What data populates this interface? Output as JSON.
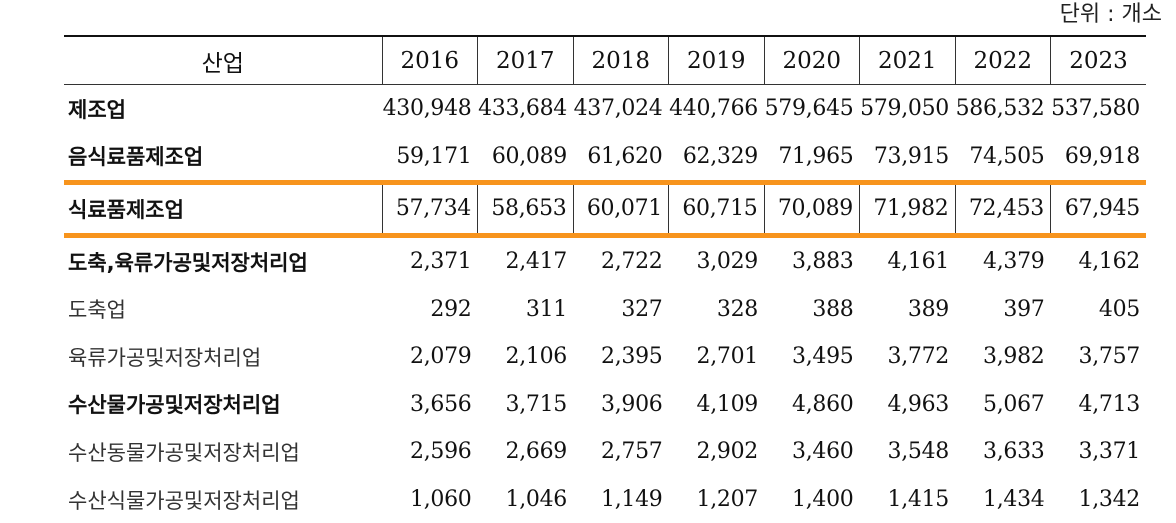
{
  "unit_label": "단위 : 개소",
  "colors": {
    "highlight": "#f7941d"
  },
  "table": {
    "header": {
      "name": "산업",
      "years": [
        "2016",
        "2017",
        "2018",
        "2019",
        "2020",
        "2021",
        "2022",
        "2023"
      ]
    },
    "rows": [
      {
        "name": "제조업",
        "bold": true,
        "highlight": false,
        "values": [
          "430,948",
          "433,684",
          "437,024",
          "440,766",
          "579,645",
          "579,050",
          "586,532",
          "537,580"
        ]
      },
      {
        "name": "음식료품제조업",
        "bold": true,
        "highlight": false,
        "values": [
          "59,171",
          "60,089",
          "61,620",
          "62,329",
          "71,965",
          "73,915",
          "74,505",
          "69,918"
        ]
      },
      {
        "name": "식료품제조업",
        "bold": true,
        "highlight": true,
        "values": [
          "57,734",
          "58,653",
          "60,071",
          "60,715",
          "70,089",
          "71,982",
          "72,453",
          "67,945"
        ]
      },
      {
        "name": "도축,육류가공및저장처리업",
        "bold": true,
        "highlight": false,
        "values": [
          "2,371",
          "2,417",
          "2,722",
          "3,029",
          "3,883",
          "4,161",
          "4,379",
          "4,162"
        ]
      },
      {
        "name": "도축업",
        "bold": false,
        "highlight": false,
        "values": [
          "292",
          "311",
          "327",
          "328",
          "388",
          "389",
          "397",
          "405"
        ]
      },
      {
        "name": "육류가공및저장처리업",
        "bold": false,
        "highlight": false,
        "values": [
          "2,079",
          "2,106",
          "2,395",
          "2,701",
          "3,495",
          "3,772",
          "3,982",
          "3,757"
        ]
      },
      {
        "name": "수산물가공및저장처리업",
        "bold": true,
        "highlight": false,
        "values": [
          "3,656",
          "3,715",
          "3,906",
          "4,109",
          "4,860",
          "4,963",
          "5,067",
          "4,713"
        ]
      },
      {
        "name": "수산동물가공및저장처리업",
        "bold": false,
        "highlight": false,
        "values": [
          "2,596",
          "2,669",
          "2,757",
          "2,902",
          "3,460",
          "3,548",
          "3,633",
          "3,371"
        ]
      },
      {
        "name": "수산식물가공및저장처리업",
        "bold": false,
        "highlight": false,
        "values": [
          "1,060",
          "1,046",
          "1,149",
          "1,207",
          "1,400",
          "1,415",
          "1,434",
          "1,342"
        ]
      }
    ]
  }
}
